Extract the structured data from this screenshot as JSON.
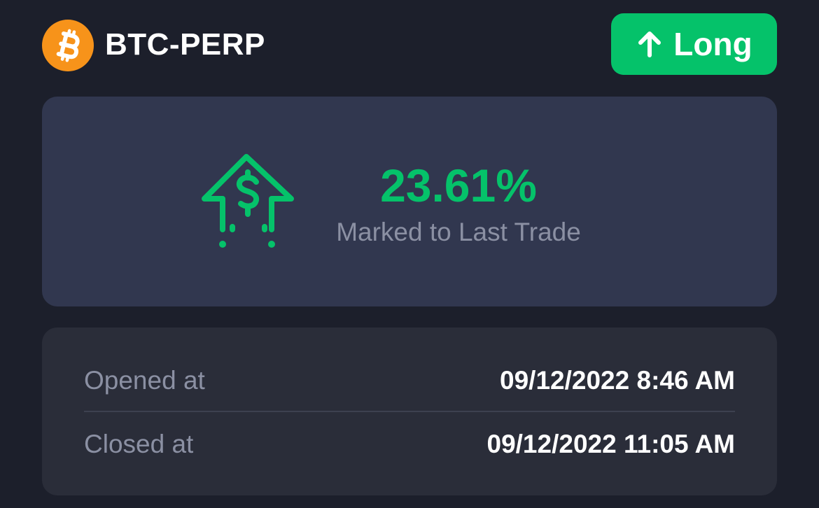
{
  "header": {
    "coin_icon": "bitcoin-icon",
    "pair": "BTC-PERP",
    "side": {
      "label": "Long",
      "icon": "arrow-up-icon"
    }
  },
  "pnl": {
    "icon": "money-arrow-up-icon",
    "value": "23.61%",
    "caption": "Marked to Last Trade"
  },
  "times": {
    "opened": {
      "label": "Opened at",
      "value": "09/12/2022 8:46 AM"
    },
    "closed": {
      "label": "Closed at",
      "value": "09/12/2022 11:05 AM"
    }
  },
  "colors": {
    "background": "#1c1f2b",
    "pnl_card": "#31374f",
    "times_card": "#2a2d39",
    "accent_green": "#05c26a",
    "bitcoin_orange": "#f7931a",
    "muted_text": "#8b90a3"
  }
}
